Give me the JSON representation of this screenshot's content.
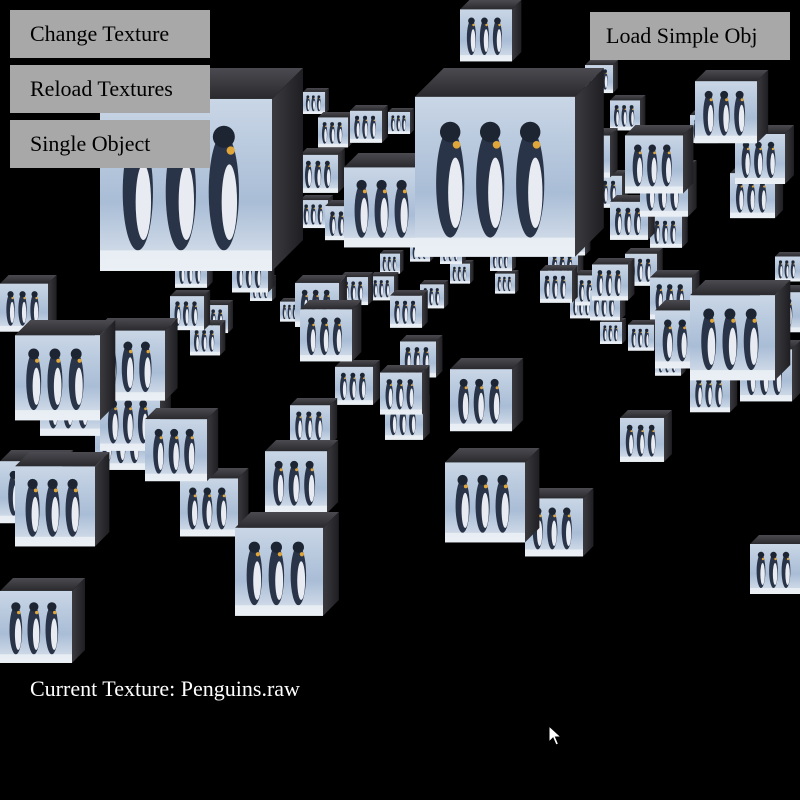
{
  "buttons": {
    "change_texture": "Change Texture",
    "reload_textures": "Reload Textures",
    "single_object": "Single Object",
    "load_simple_obj": "Load Simple Obj"
  },
  "status": {
    "label": "Current Texture: ",
    "texture_name": "Penguins.raw"
  },
  "colors": {
    "background": "#000000",
    "button_bg": "#a8a8a8",
    "sky": "#b7c8df",
    "penguin": "#2a3448",
    "cube_side": "#2b2b2f"
  },
  "icons": {
    "cursor": "arrow-cursor-icon"
  }
}
